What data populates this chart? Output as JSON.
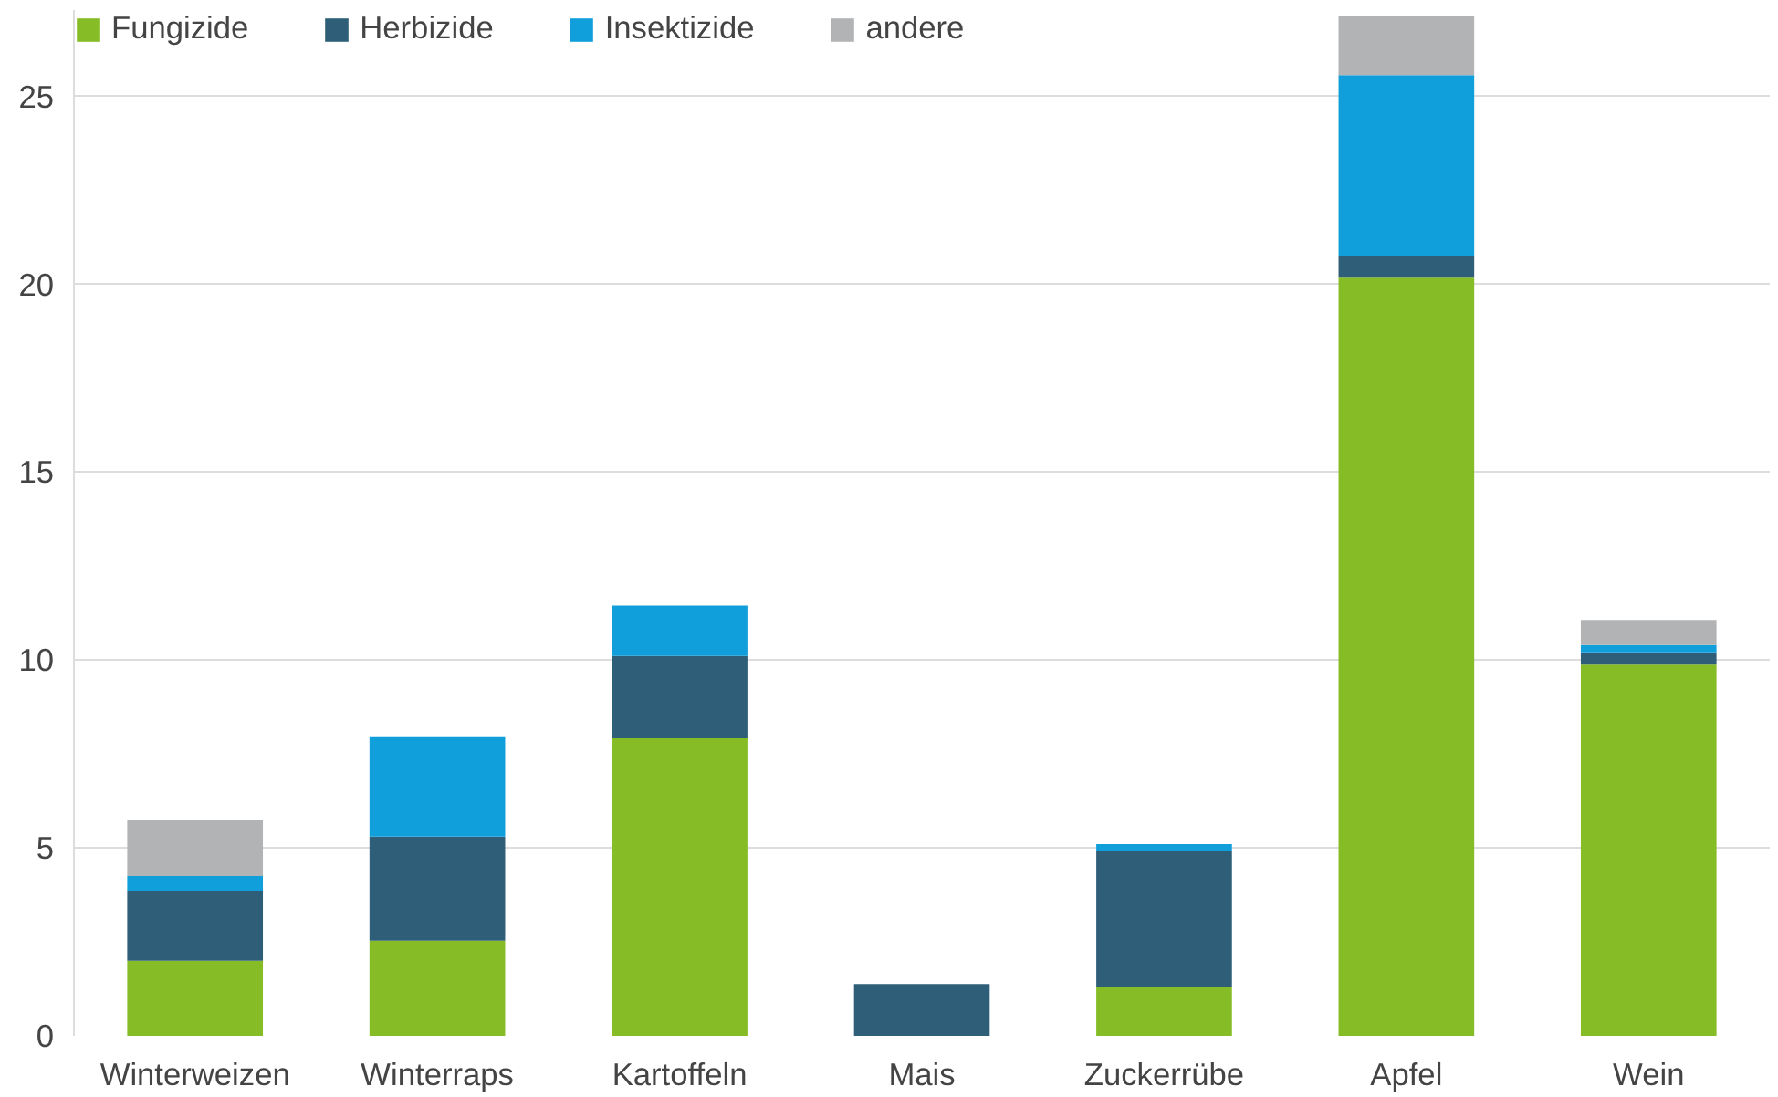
{
  "chart_data": {
    "type": "bar",
    "stacked": true,
    "categories": [
      "Winterweizen",
      "Winterraps",
      "Kartoffeln",
      "Mais",
      "Zuckerrübe",
      "Apfel",
      "Wein"
    ],
    "series": [
      {
        "name": "Fungizide",
        "color": "#86bc25",
        "values": [
          2.0,
          2.53,
          7.92,
          0,
          1.29,
          20.18,
          9.88
        ]
      },
      {
        "name": "Herbizide",
        "color": "#2f5f78",
        "values": [
          1.86,
          2.77,
          2.19,
          1.38,
          3.62,
          0.57,
          0.33
        ]
      },
      {
        "name": "Insektizide",
        "color": "#109fdb",
        "values": [
          0.39,
          2.67,
          1.34,
          0,
          0.19,
          4.82,
          0.19
        ]
      },
      {
        "name": "andere",
        "color": "#b2b3b5",
        "values": [
          1.48,
          0,
          0,
          0,
          0,
          1.58,
          0.67
        ]
      }
    ],
    "ylim": [
      0,
      27.3
    ],
    "yticks": [
      0,
      5,
      10,
      15,
      20,
      25
    ],
    "grid": "y",
    "legend": "top left"
  }
}
